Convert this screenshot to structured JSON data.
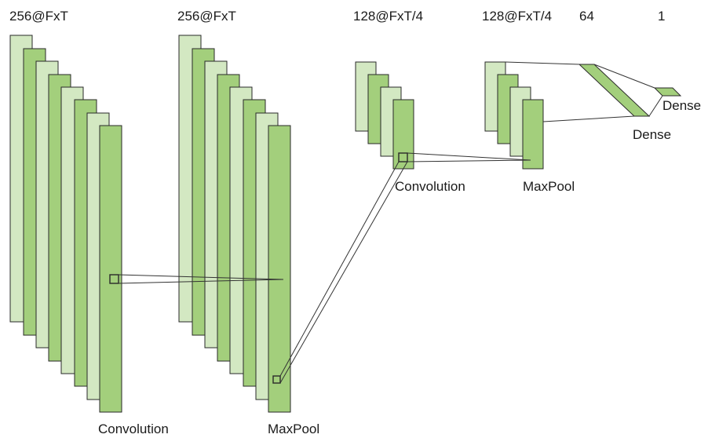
{
  "header_labels": [
    "256@FxT",
    "256@FxT",
    "128@FxT/4",
    "128@FxT/4",
    "64",
    "1"
  ],
  "stage_labels": [
    "Convolution",
    "MaxPool",
    "Convolution",
    "MaxPool",
    "Dense",
    "Dense"
  ],
  "colors": {
    "map_light": "#d3e8c2",
    "map_dark": "#a3cf7c",
    "outline": "#2a2a2a",
    "connector": "#333333",
    "text": "#1a1a1a"
  }
}
